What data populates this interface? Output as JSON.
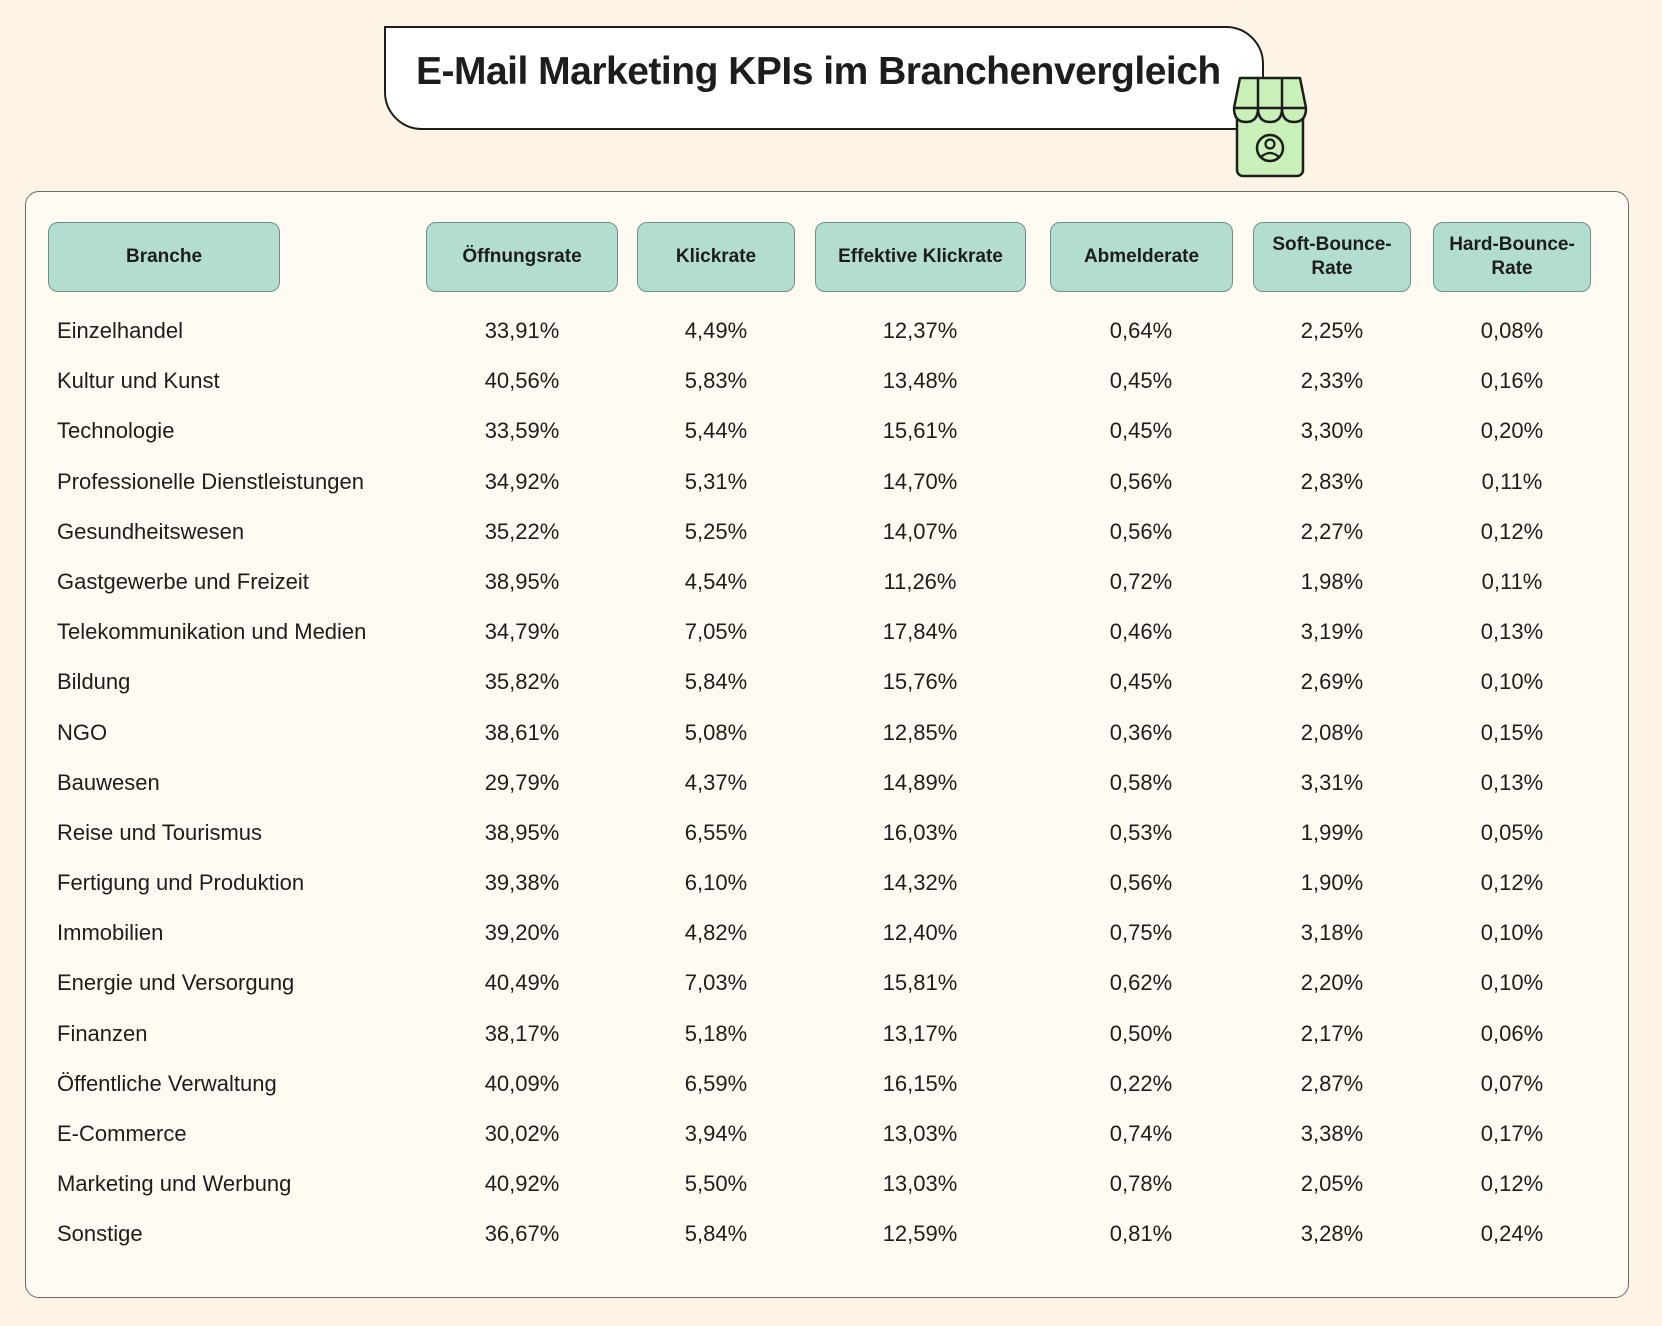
{
  "title": "E-Mail Marketing KPIs im Branchenvergleich",
  "icon": "shop-icon",
  "colors": {
    "background": "#fdf4e6",
    "header_fill": "#b3ddd0",
    "icon_green": "#c8f0b8"
  },
  "table": {
    "headers": [
      "Branche",
      "Öffnungsrate",
      "Klickrate",
      "Effektive Klickrate",
      "Abmelderate",
      "Soft-Bounce-Rate",
      "Hard-Bounce-Rate"
    ],
    "rows": [
      [
        "Einzelhandel",
        "33,91%",
        "4,49%",
        "12,37%",
        "0,64%",
        "2,25%",
        "0,08%"
      ],
      [
        "Kultur und Kunst",
        "40,56%",
        "5,83%",
        "13,48%",
        "0,45%",
        "2,33%",
        "0,16%"
      ],
      [
        "Technologie",
        "33,59%",
        "5,44%",
        "15,61%",
        "0,45%",
        "3,30%",
        "0,20%"
      ],
      [
        "Professionelle Dienstleistungen",
        "34,92%",
        "5,31%",
        "14,70%",
        "0,56%",
        "2,83%",
        "0,11%"
      ],
      [
        "Gesundheitswesen",
        "35,22%",
        "5,25%",
        "14,07%",
        "0,56%",
        "2,27%",
        "0,12%"
      ],
      [
        "Gastgewerbe und Freizeit",
        "38,95%",
        "4,54%",
        "11,26%",
        "0,72%",
        "1,98%",
        "0,11%"
      ],
      [
        "Telekommunikation und Medien",
        "34,79%",
        "7,05%",
        "17,84%",
        "0,46%",
        "3,19%",
        "0,13%"
      ],
      [
        "Bildung",
        "35,82%",
        "5,84%",
        "15,76%",
        "0,45%",
        "2,69%",
        "0,10%"
      ],
      [
        "NGO",
        "38,61%",
        "5,08%",
        "12,85%",
        "0,36%",
        "2,08%",
        "0,15%"
      ],
      [
        "Bauwesen",
        "29,79%",
        "4,37%",
        "14,89%",
        "0,58%",
        "3,31%",
        "0,13%"
      ],
      [
        "Reise und Tourismus",
        "38,95%",
        "6,55%",
        "16,03%",
        "0,53%",
        "1,99%",
        "0,05%"
      ],
      [
        "Fertigung und Produktion",
        "39,38%",
        "6,10%",
        "14,32%",
        "0,56%",
        "1,90%",
        "0,12%"
      ],
      [
        "Immobilien",
        "39,20%",
        "4,82%",
        "12,40%",
        "0,75%",
        "3,18%",
        "0,10%"
      ],
      [
        "Energie und Versorgung",
        "40,49%",
        "7,03%",
        "15,81%",
        "0,62%",
        "2,20%",
        "0,10%"
      ],
      [
        "Finanzen",
        "38,17%",
        "5,18%",
        "13,17%",
        "0,50%",
        "2,17%",
        "0,06%"
      ],
      [
        "Öffentliche Verwaltung",
        "40,09%",
        "6,59%",
        "16,15%",
        "0,22%",
        "2,87%",
        "0,07%"
      ],
      [
        "E-Commerce",
        "30,02%",
        "3,94%",
        "13,03%",
        "0,74%",
        "3,38%",
        "0,17%"
      ],
      [
        "Marketing und Werbung",
        "40,92%",
        "5,50%",
        "13,03%",
        "0,78%",
        "2,05%",
        "0,12%"
      ],
      [
        "Sonstige",
        "36,67%",
        "5,84%",
        "12,59%",
        "0,81%",
        "3,28%",
        "0,24%"
      ]
    ]
  }
}
